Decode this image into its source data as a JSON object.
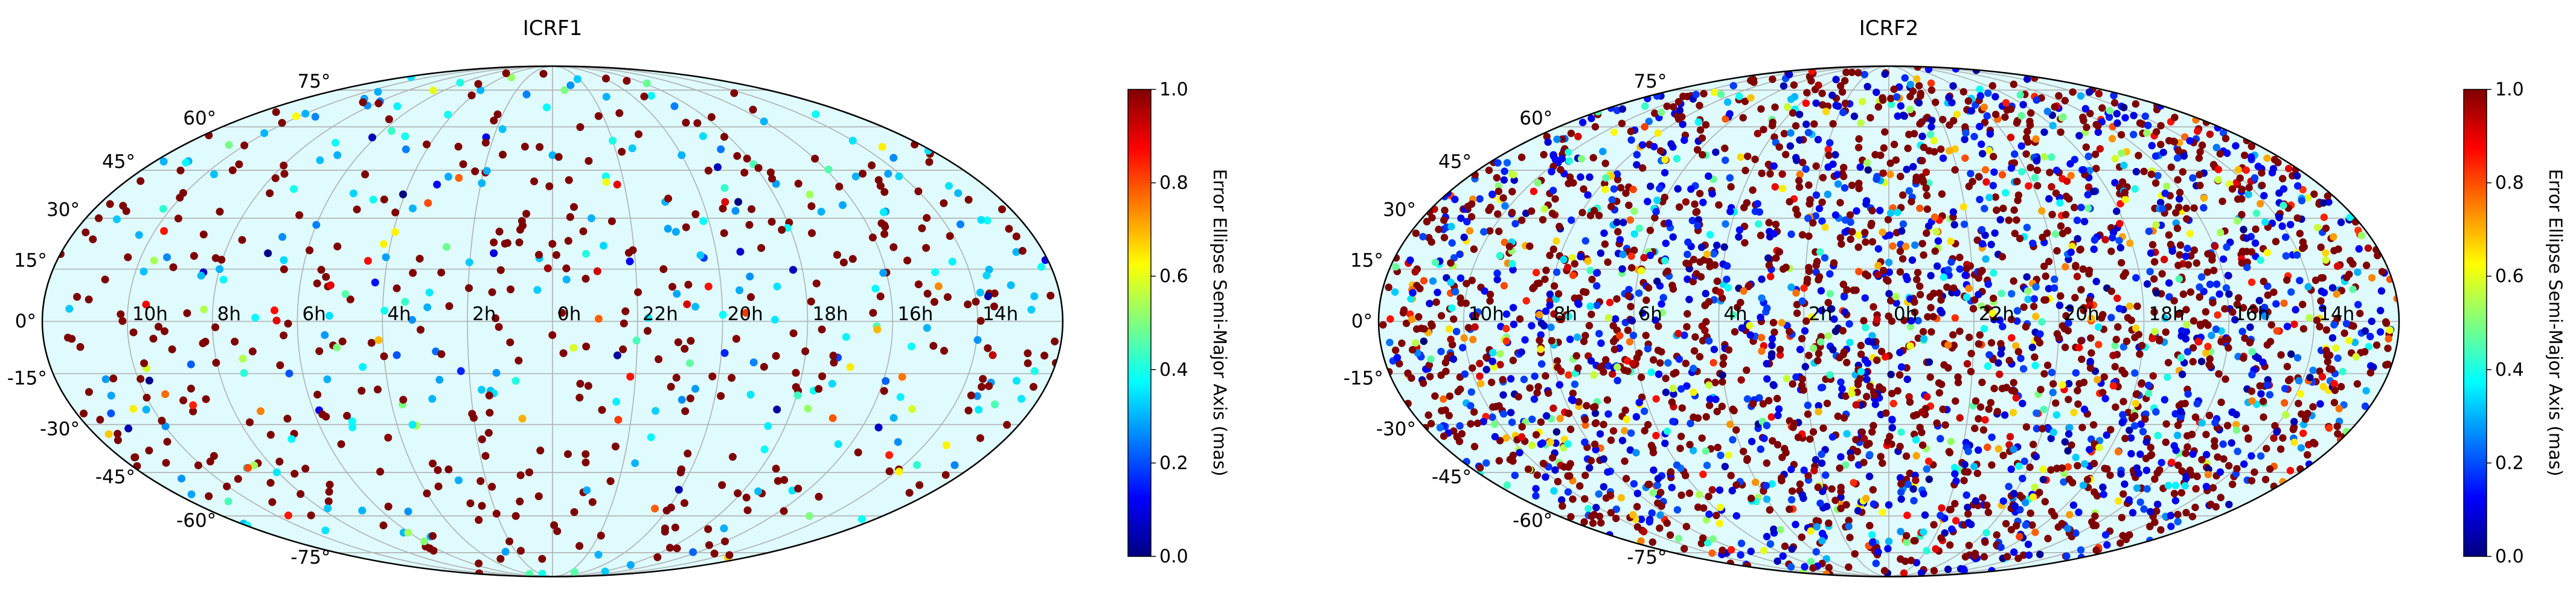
{
  "figure": {
    "colorbar_label": "Error Ellipse Semi-Major Axis (mas)",
    "colormap": "jet",
    "colors": {
      "ocean": "#dffbfd",
      "grid": "#b0b0b0",
      "outline": "#000000"
    }
  },
  "chart_data": [
    {
      "type": "scatter",
      "projection": "mollweide",
      "title": "ICRF1",
      "ra_tick_labels": [
        "10h",
        "8h",
        "6h",
        "4h",
        "2h",
        "0h",
        "22h",
        "20h",
        "18h",
        "16h",
        "14h"
      ],
      "dec_tick_labels": [
        "75°",
        "60°",
        "45°",
        "30°",
        "15°",
        "0°",
        "-15°",
        "-30°",
        "-45°",
        "-60°",
        "-75°"
      ],
      "color_range": [
        0.0,
        1.0
      ],
      "colorbar_ticks": [
        "0.0",
        "0.2",
        "0.4",
        "0.6",
        "0.8",
        "1.0"
      ],
      "approx_source_count": 700,
      "points": [
        [
          -150,
          65,
          0.3
        ],
        [
          -120,
          70,
          0.25
        ],
        [
          -60,
          75,
          0.3
        ],
        [
          -20,
          73,
          0.25
        ],
        [
          10,
          75,
          0.5
        ],
        [
          40,
          72,
          0.3
        ],
        [
          80,
          68,
          0.25
        ],
        [
          120,
          62,
          0.3
        ],
        [
          150,
          55,
          0.35
        ],
        [
          -165,
          48,
          0.3
        ],
        [
          -140,
          45,
          1.0
        ],
        [
          -100,
          50,
          0.3
        ],
        [
          -70,
          52,
          0.25
        ],
        [
          -40,
          47,
          1.0
        ],
        [
          0,
          50,
          0.3
        ],
        [
          30,
          55,
          0.4
        ],
        [
          60,
          50,
          0.3
        ],
        [
          90,
          47,
          0.45
        ],
        [
          130,
          43,
          0.3
        ],
        [
          165,
          40,
          0.35
        ],
        [
          -175,
          30,
          1.0
        ],
        [
          -155,
          25,
          0.3
        ],
        [
          -130,
          32,
          1.0
        ],
        [
          -90,
          28,
          0.25
        ],
        [
          -55,
          33,
          0.3
        ],
        [
          -20,
          26,
          1.0
        ],
        [
          15,
          30,
          0.3
        ],
        [
          45,
          35,
          0.3
        ],
        [
          75,
          28,
          1.0
        ],
        [
          105,
          32,
          0.3
        ],
        [
          140,
          27,
          1.0
        ],
        [
          170,
          20,
          0.3
        ],
        [
          -160,
          12,
          1.0
        ],
        [
          -120,
          15,
          0.3
        ],
        [
          -80,
          10,
          1.0
        ],
        [
          -40,
          14,
          1.0
        ],
        [
          5,
          12,
          0.3
        ],
        [
          40,
          15,
          1.0
        ],
        [
          80,
          10,
          0.35
        ],
        [
          120,
          14,
          1.0
        ],
        [
          155,
          8,
          1.0
        ],
        [
          -170,
          -5,
          1.0
        ],
        [
          -135,
          -8,
          1.0
        ],
        [
          -95,
          -4,
          1.0
        ],
        [
          -60,
          -10,
          1.0
        ],
        [
          -15,
          -6,
          1.0
        ],
        [
          25,
          -8,
          1.0
        ],
        [
          65,
          -5,
          1.0
        ],
        [
          100,
          -10,
          0.3
        ],
        [
          135,
          -7,
          1.0
        ],
        [
          170,
          -12,
          1.0
        ],
        [
          -150,
          -22,
          1.0
        ],
        [
          -110,
          -26,
          0.75
        ],
        [
          -70,
          -20,
          1.0
        ],
        [
          -30,
          -28,
          1.0
        ],
        [
          10,
          -22,
          1.0
        ],
        [
          50,
          -26,
          1.0
        ],
        [
          90,
          -20,
          1.0
        ],
        [
          130,
          -28,
          0.3
        ],
        [
          165,
          -24,
          0.45
        ],
        [
          -165,
          -38,
          1.0
        ],
        [
          -125,
          -42,
          1.0
        ],
        [
          -85,
          -36,
          1.0
        ],
        [
          -45,
          -44,
          1.0
        ],
        [
          -5,
          -38,
          1.0
        ],
        [
          35,
          -42,
          0.3
        ],
        [
          75,
          -40,
          1.0
        ],
        [
          115,
          -36,
          0.35
        ],
        [
          150,
          -44,
          1.0
        ],
        [
          -140,
          -55,
          1.0
        ],
        [
          -100,
          -58,
          0.3
        ],
        [
          -60,
          -52,
          1.0
        ],
        [
          -20,
          -60,
          1.0
        ],
        [
          20,
          -55,
          1.0
        ],
        [
          60,
          -58,
          1.0
        ],
        [
          100,
          -52,
          1.0
        ],
        [
          140,
          -60,
          0.5
        ],
        [
          -80,
          -68,
          0.3
        ],
        [
          -30,
          -70,
          1.0
        ],
        [
          20,
          -72,
          1.0
        ],
        [
          70,
          -66,
          1.0
        ],
        [
          120,
          -70,
          1.0
        ],
        [
          -10,
          -78,
          1.0
        ],
        [
          40,
          -76,
          0.3
        ],
        [
          -50,
          -78,
          1.0
        ]
      ]
    },
    {
      "type": "scatter",
      "projection": "mollweide",
      "title": "ICRF2",
      "ra_tick_labels": [
        "10h",
        "8h",
        "6h",
        "4h",
        "2h",
        "0h",
        "22h",
        "20h",
        "18h",
        "16h",
        "14h"
      ],
      "dec_tick_labels": [
        "75°",
        "60°",
        "45°",
        "30°",
        "15°",
        "0°",
        "-15°",
        "-30°",
        "-45°",
        "-60°",
        "-75°"
      ],
      "color_range": [
        0.0,
        1.0
      ],
      "colorbar_ticks": [
        "0.0",
        "0.2",
        "0.4",
        "0.6",
        "0.8",
        "1.0"
      ],
      "approx_source_count": 3400,
      "points": [
        [
          -160,
          60,
          1.0
        ],
        [
          -130,
          65,
          0.1
        ],
        [
          -100,
          70,
          1.0
        ],
        [
          -70,
          72,
          0.3
        ],
        [
          -40,
          68,
          1.0
        ],
        [
          -10,
          74,
          0.1
        ],
        [
          20,
          70,
          1.0
        ],
        [
          50,
          66,
          0.3
        ],
        [
          80,
          62,
          1.0
        ],
        [
          110,
          58,
          0.1
        ],
        [
          140,
          55,
          1.0
        ],
        [
          170,
          50,
          0.3
        ],
        [
          -175,
          45,
          1.0
        ],
        [
          -145,
          48,
          0.1
        ],
        [
          -115,
          42,
          1.0
        ],
        [
          -85,
          50,
          0.45
        ],
        [
          -55,
          44,
          1.0
        ],
        [
          -25,
          47,
          0.1
        ],
        [
          5,
          43,
          1.0
        ],
        [
          35,
          49,
          0.8
        ],
        [
          65,
          45,
          1.0
        ],
        [
          95,
          41,
          0.1
        ],
        [
          125,
          46,
          1.0
        ],
        [
          155,
          40,
          0.3
        ],
        [
          -165,
          30,
          0.1
        ],
        [
          -135,
          34,
          1.0
        ],
        [
          -105,
          28,
          0.3
        ],
        [
          -75,
          32,
          1.0
        ],
        [
          -45,
          26,
          0.1
        ],
        [
          -15,
          31,
          1.0
        ],
        [
          15,
          27,
          0.6
        ],
        [
          45,
          33,
          1.0
        ],
        [
          75,
          29,
          0.1
        ],
        [
          105,
          25,
          1.0
        ],
        [
          135,
          30,
          0.3
        ],
        [
          165,
          24,
          1.0
        ],
        [
          -170,
          15,
          1.0
        ],
        [
          -140,
          12,
          0.1
        ],
        [
          -110,
          18,
          1.0
        ],
        [
          -80,
          14,
          0.3
        ],
        [
          -50,
          10,
          1.0
        ],
        [
          -20,
          16,
          0.1
        ],
        [
          10,
          12,
          1.0
        ],
        [
          40,
          8,
          0.45
        ],
        [
          70,
          15,
          1.0
        ],
        [
          100,
          11,
          0.1
        ],
        [
          130,
          17,
          1.0
        ],
        [
          160,
          9,
          0.3
        ],
        [
          -165,
          -2,
          1.0
        ],
        [
          -135,
          -6,
          0.1
        ],
        [
          -105,
          2,
          1.0
        ],
        [
          -75,
          -4,
          0.3
        ],
        [
          -45,
          0,
          1.0
        ],
        [
          -15,
          -8,
          0.1
        ],
        [
          15,
          -3,
          1.0
        ],
        [
          45,
          -7,
          0.7
        ],
        [
          75,
          1,
          1.0
        ],
        [
          105,
          -5,
          0.1
        ],
        [
          135,
          -1,
          1.0
        ],
        [
          165,
          -6,
          0.3
        ],
        [
          -155,
          -16,
          1.0
        ],
        [
          -125,
          -20,
          0.1
        ],
        [
          -95,
          -14,
          1.0
        ],
        [
          -65,
          -22,
          0.3
        ],
        [
          -35,
          -18,
          1.0
        ],
        [
          -5,
          -24,
          0.1
        ],
        [
          25,
          -16,
          1.0
        ],
        [
          55,
          -21,
          0.5
        ],
        [
          85,
          -15,
          1.0
        ],
        [
          115,
          -23,
          0.1
        ],
        [
          145,
          -17,
          1.0
        ],
        [
          175,
          -20,
          0.3
        ],
        [
          -170,
          -32,
          1.0
        ],
        [
          -140,
          -36,
          0.1
        ],
        [
          -110,
          -30,
          1.0
        ],
        [
          -80,
          -38,
          0.3
        ],
        [
          -50,
          -34,
          1.0
        ],
        [
          -20,
          -40,
          0.1
        ],
        [
          10,
          -33,
          1.0
        ],
        [
          40,
          -37,
          0.8
        ],
        [
          70,
          -31,
          1.0
        ],
        [
          100,
          -39,
          0.1
        ],
        [
          130,
          -35,
          1.0
        ],
        [
          160,
          -30,
          0.3
        ],
        [
          -150,
          -48,
          1.0
        ],
        [
          -120,
          -52,
          0.1
        ],
        [
          -90,
          -46,
          1.0
        ],
        [
          -60,
          -54,
          0.3
        ],
        [
          -30,
          -50,
          1.0
        ],
        [
          0,
          -56,
          0.1
        ],
        [
          30,
          -49,
          1.0
        ],
        [
          60,
          -53,
          0.45
        ],
        [
          90,
          -47,
          1.0
        ],
        [
          120,
          -55,
          0.1
        ],
        [
          150,
          -51,
          1.0
        ],
        [
          -120,
          -64,
          1.0
        ],
        [
          -80,
          -68,
          0.1
        ],
        [
          -40,
          -62,
          1.0
        ],
        [
          0,
          -70,
          0.3
        ],
        [
          40,
          -66,
          1.0
        ],
        [
          80,
          -63,
          0.1
        ],
        [
          120,
          -68,
          1.0
        ],
        [
          -60,
          -78,
          0.3
        ],
        [
          -10,
          -76,
          1.0
        ],
        [
          30,
          -80,
          0.1
        ],
        [
          70,
          -77,
          1.0
        ],
        [
          -100,
          -74,
          0.6
        ]
      ]
    }
  ]
}
